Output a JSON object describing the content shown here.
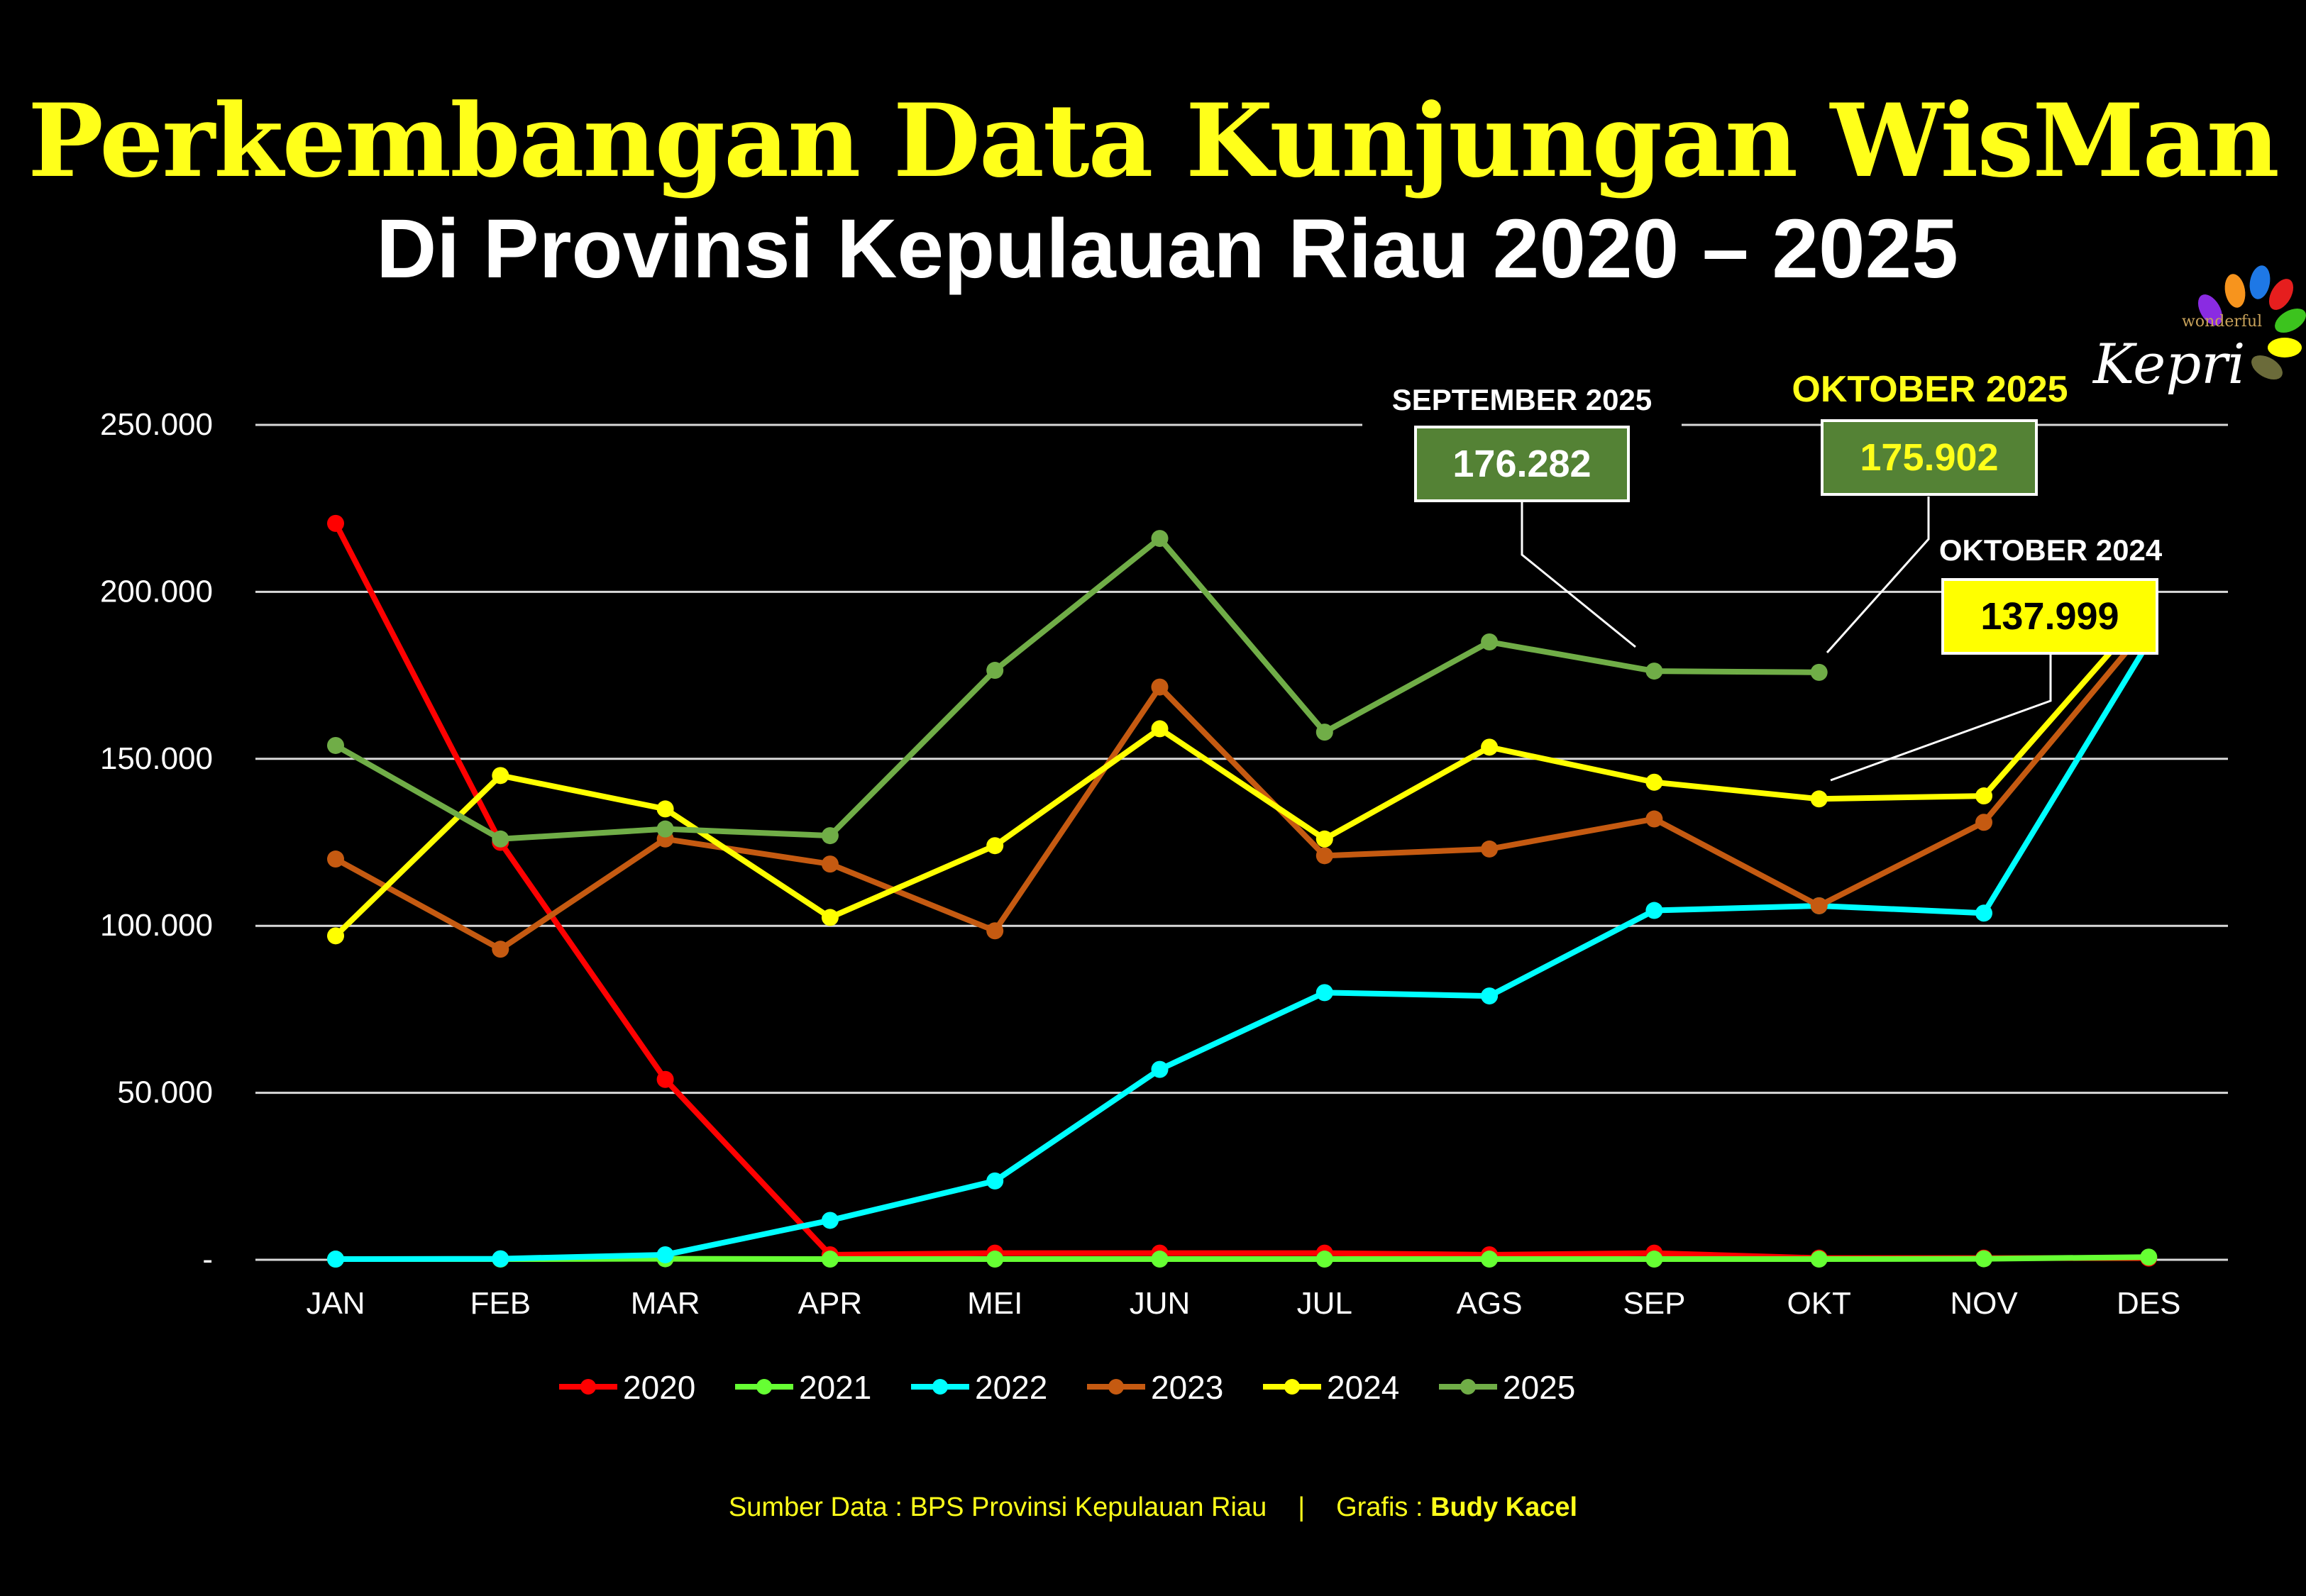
{
  "header": {
    "title": "Perkembangan Data Kunjungan WisMan",
    "subtitle": "Di Provinsi Kepulauan Riau 2020 – 2025"
  },
  "logo": {
    "small_text": "wonderful",
    "big_text": "Kepri",
    "petal_colors": [
      "#8a2be2",
      "#f7941d",
      "#1e78e6",
      "#e61e1e",
      "#3cc31e",
      "#ffff00",
      "#6b6b3a"
    ]
  },
  "annotations": [
    {
      "label": "SEPTEMBER 2025",
      "value": "176.282",
      "label_color": "#ffffff",
      "box_color": "#548235",
      "value_color": "#ffffff"
    },
    {
      "label": "OKTOBER 2025",
      "value": "175.902",
      "label_color": "#ffff1a",
      "box_color": "#548235",
      "value_color": "#ffff1a"
    },
    {
      "label": "OKTOBER 2024",
      "value": "137.999",
      "label_color": "#ffffff",
      "box_color": "#ffff00",
      "value_color": "#000000"
    }
  ],
  "footer": {
    "source_prefix": "Sumber Data : BPS Provinsi Kepulauan Riau",
    "separator": "|",
    "credit_prefix": "Grafis : ",
    "credit_name": "Budy Kacel"
  },
  "chart_data": {
    "type": "line",
    "title": "Perkembangan Data Kunjungan WisMan Di Provinsi Kepulauan Riau 2020 – 2025",
    "xlabel": "",
    "ylabel": "",
    "ylim": [
      0,
      250000
    ],
    "yticks": [
      0,
      50000,
      100000,
      150000,
      200000,
      250000
    ],
    "ytick_labels": [
      "-",
      "50.000",
      "100.000",
      "150.000",
      "200.000",
      "250.000"
    ],
    "grid": true,
    "legend_position": "bottom",
    "categories": [
      "JAN",
      "FEB",
      "MAR",
      "APR",
      "MEI",
      "JUN",
      "JUL",
      "AGS",
      "SEP",
      "OKT",
      "NOV",
      "DES"
    ],
    "series": [
      {
        "name": "2020",
        "color": "#ff0000",
        "values": [
          220500,
          125000,
          54000,
          1500,
          2000,
          2000,
          2000,
          1500,
          2000,
          500,
          500,
          500
        ]
      },
      {
        "name": "2021",
        "color": "#66ff33",
        "values": [
          200,
          200,
          300,
          200,
          200,
          200,
          200,
          200,
          200,
          200,
          300,
          800
        ]
      },
      {
        "name": "2022",
        "color": "#00ffff",
        "values": [
          200,
          300,
          1500,
          11800,
          23600,
          57000,
          80000,
          79000,
          104600,
          106000,
          103800,
          185000
        ]
      },
      {
        "name": "2023",
        "color": "#c55a11",
        "values": [
          120000,
          93000,
          126000,
          118500,
          98500,
          171500,
          121000,
          123000,
          132000,
          106000,
          131000,
          190000
        ]
      },
      {
        "name": "2024",
        "color": "#ffff00",
        "values": [
          97000,
          145000,
          135000,
          102500,
          124000,
          159000,
          126000,
          153500,
          143000,
          137999,
          138900,
          195000
        ]
      },
      {
        "name": "2025",
        "color": "#70ad47",
        "values": [
          154000,
          126000,
          129000,
          127000,
          176500,
          216000,
          158000,
          185000,
          176282,
          175902,
          null,
          null
        ]
      }
    ]
  }
}
